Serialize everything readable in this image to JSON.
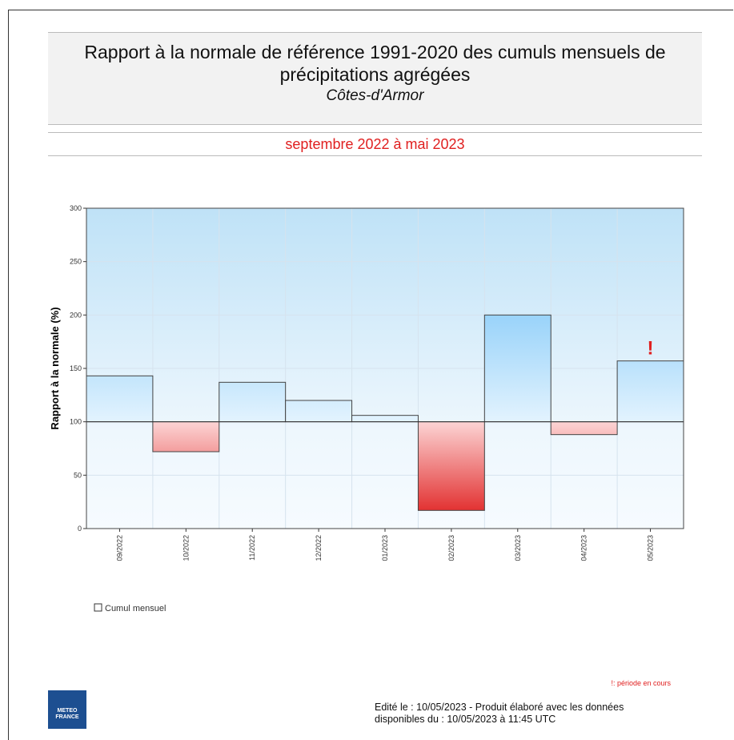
{
  "chart_data": {
    "type": "bar",
    "title": "Rapport à la normale de référence 1991-2020 des cumuls mensuels de précipitations agrégées",
    "subtitle": "Côtes-d'Armor",
    "period": "septembre 2022 à mai 2023",
    "y_label": "Rapport à la normale (%)",
    "categories": [
      "09/2022",
      "10/2022",
      "11/2022",
      "12/2022",
      "01/2023",
      "02/2023",
      "03/2023",
      "04/2023",
      "05/2023"
    ],
    "series": [
      {
        "name": "Cumul mensuel",
        "values": [
          143,
          72,
          137,
          120,
          106,
          17,
          200,
          88,
          157
        ]
      }
    ],
    "baseline": 100,
    "ylim": [
      0,
      300
    ],
    "yticks": [
      0,
      50,
      100,
      150,
      200,
      250,
      300
    ],
    "grid": true,
    "current_marker": "!",
    "note": "!: période en cours"
  },
  "footer": {
    "lines": [
      "Edité le : 10/05/2023 - Produit élaboré avec les données",
      "disponibles du : 10/05/2023 à 11:45 UTC"
    ],
    "logo": [
      "METEO",
      "FRANCE"
    ]
  }
}
